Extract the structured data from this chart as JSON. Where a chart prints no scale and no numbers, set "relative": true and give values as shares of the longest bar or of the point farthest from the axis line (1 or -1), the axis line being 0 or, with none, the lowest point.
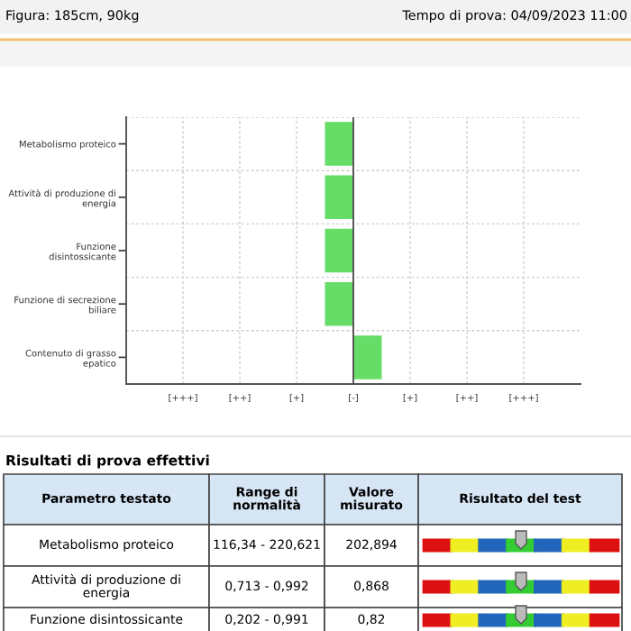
{
  "chart_data": {
    "type": "bar",
    "orientation": "horizontal",
    "categories": [
      "Metabolismo proteico",
      "Attività di produzione di\nenergia",
      "Funzione\ndisintossicante",
      "Funzione di secrezione\nbiliare",
      "Contenuto di grasso\nepatico"
    ],
    "values": [
      -1,
      -1,
      -1,
      -1,
      1
    ],
    "relative": true,
    "color": "#66dd66",
    "ref_lines": [
      {
        "axis": "x",
        "value": 0,
        "color": "#555555",
        "line_style": "solid"
      }
    ],
    "grid": true,
    "annotations": [
      "[+++]",
      "[++]",
      "[+]",
      "[-]",
      "[+]",
      "[++]",
      "[+++]",
      "Figura: 185cm, 90kg",
      "Tempo di prova: 04/09/2023 11:00",
      "Risultati di prova effettivi",
      "Parametro testato",
      "Range di\nnormalità",
      "Valore\nmisurato",
      "Risultato del test",
      "Metabolismo proteico",
      "116,34 - 220,621",
      "202,894",
      "Attività di produzione di\nenergia",
      "0,713 - 0,992",
      "0,868",
      "Funzione disintossicante",
      "0,202 - 0,991",
      "0,82"
    ]
  }
}
